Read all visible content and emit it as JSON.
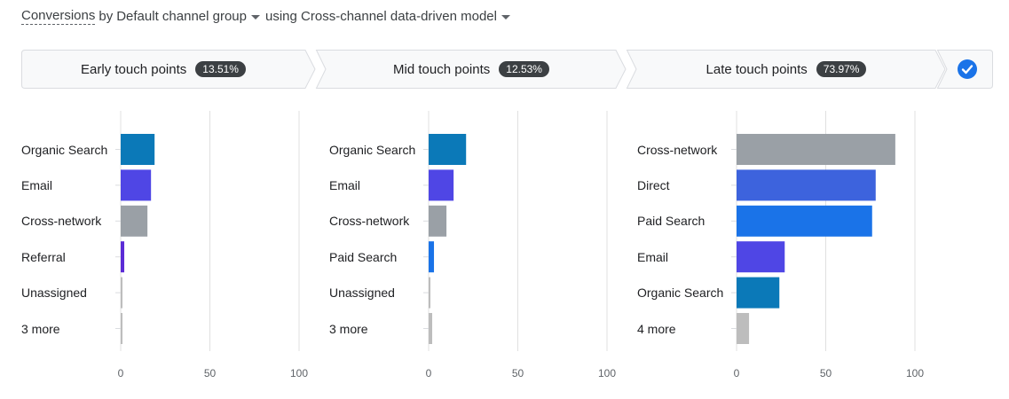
{
  "header": {
    "metric": "Conversions",
    "by_text": "by",
    "dimension": "Default channel group",
    "model_text": "using Cross-channel data-driven model"
  },
  "steps": [
    {
      "label": "Early touch points",
      "value": "13.51%"
    },
    {
      "label": "Mid touch points",
      "value": "12.53%"
    },
    {
      "label": "Late touch points",
      "value": "73.97%"
    }
  ],
  "colors": {
    "Organic Search": "#0b79b8",
    "Email": "#4f46e5",
    "Cross-network": "#9aa0a6",
    "Referral": "#5b2bd6",
    "Unassigned": "#bdbdbd",
    "more": "#bdbdbd",
    "Paid Search": "#1a73e8",
    "Direct": "#3d63dd"
  },
  "chart_data": [
    {
      "type": "bar",
      "orientation": "horizontal",
      "categories": [
        "Organic Search",
        "Email",
        "Cross-network",
        "Referral",
        "Unassigned",
        "3 more"
      ],
      "values": [
        19,
        17,
        15,
        2,
        1,
        1
      ],
      "xlim": [
        0,
        100
      ],
      "xticks": [
        "0",
        "50",
        "100"
      ],
      "grid": true
    },
    {
      "type": "bar",
      "orientation": "horizontal",
      "categories": [
        "Organic Search",
        "Email",
        "Cross-network",
        "Paid Search",
        "Unassigned",
        "3 more"
      ],
      "values": [
        21,
        14,
        10,
        3,
        1,
        2
      ],
      "xlim": [
        0,
        100
      ],
      "xticks": [
        "0",
        "50",
        "100"
      ],
      "grid": true
    },
    {
      "type": "bar",
      "orientation": "horizontal",
      "categories": [
        "Cross-network",
        "Direct",
        "Paid Search",
        "Email",
        "Organic Search",
        "4 more"
      ],
      "values": [
        89,
        78,
        76,
        27,
        24,
        7
      ],
      "xlim": [
        0,
        100
      ],
      "xticks": [
        "0",
        "50",
        "100"
      ],
      "grid": true
    }
  ]
}
